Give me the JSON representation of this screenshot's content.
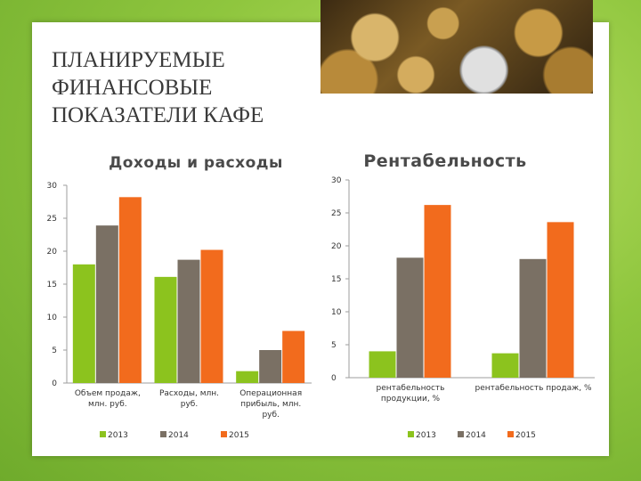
{
  "slide": {
    "title": "ПЛАНИРУЕМЫЕ\nФИНАНСОВЫЕ\nПОКАЗАТЕЛИ КАФЕ"
  },
  "colors": {
    "series_2013": "#8cc31e",
    "series_2014": "#7a7064",
    "series_2015": "#f26b1d",
    "axis": "#9e9e9e",
    "text": "#333333",
    "chart_title": "#4a4a4a"
  },
  "chart_data": [
    {
      "type": "bar",
      "title": "Доходы и расходы",
      "categories": [
        "Объем продаж, млн. руб.",
        "Расходы, млн. руб.",
        "Операционная прибыль, млн. руб."
      ],
      "category_lines": [
        [
          "Объем продаж,",
          "млн. руб."
        ],
        [
          "Расходы, млн.",
          "руб."
        ],
        [
          "Операционная",
          "прибыль, млн.",
          "руб."
        ]
      ],
      "series": [
        {
          "name": "2013",
          "values": [
            18.0,
            16.1,
            1.8
          ]
        },
        {
          "name": "2014",
          "values": [
            23.9,
            18.7,
            5.0
          ]
        },
        {
          "name": "2015",
          "values": [
            28.2,
            20.2,
            7.9
          ]
        }
      ],
      "ylim": [
        0,
        30
      ],
      "yticks": [
        "0",
        "5",
        "10",
        "15",
        "20",
        "25",
        "30"
      ],
      "legend": "bottom",
      "grid": false
    },
    {
      "type": "bar",
      "title": "Рентабельность",
      "categories": [
        "рентабельность продукции, %",
        "рентабельность продаж, %"
      ],
      "category_lines": [
        [
          "рентабельность",
          "продукции, %"
        ],
        [
          "рентабельность продаж, %"
        ]
      ],
      "series": [
        {
          "name": "2013",
          "values": [
            4.0,
            3.7
          ]
        },
        {
          "name": "2014",
          "values": [
            18.2,
            18.0
          ]
        },
        {
          "name": "2015",
          "values": [
            26.2,
            23.6
          ]
        }
      ],
      "ylim": [
        0,
        30
      ],
      "yticks": [
        "0",
        "5",
        "10",
        "15",
        "20",
        "25",
        "30"
      ],
      "legend": "bottom",
      "grid": false
    }
  ]
}
